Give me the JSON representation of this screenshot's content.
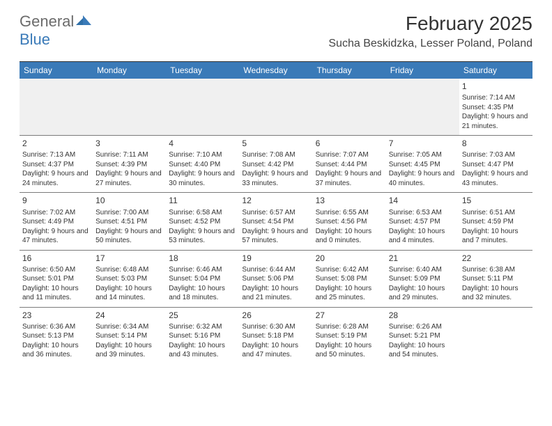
{
  "logo": {
    "general": "General",
    "blue": "Blue"
  },
  "title": "February 2025",
  "location": "Sucha Beskidzka, Lesser Poland, Poland",
  "colors": {
    "header_bar": "#3a7ab8",
    "logo_gray": "#6b6b6b",
    "logo_blue": "#3a7ab8",
    "text": "#333333",
    "divider": "#7a7a7a",
    "alt_bg": "#f0f0f0"
  },
  "daysOfWeek": [
    "Sunday",
    "Monday",
    "Tuesday",
    "Wednesday",
    "Thursday",
    "Friday",
    "Saturday"
  ],
  "month": {
    "year": 2025,
    "month": 2,
    "startDow": 6,
    "numDays": 28
  },
  "labels": {
    "sunrise": "Sunrise: ",
    "sunset": "Sunset: ",
    "daylight": "Daylight: "
  },
  "days": {
    "1": {
      "sunrise": "7:14 AM",
      "sunset": "4:35 PM",
      "daylight": "9 hours and 21 minutes."
    },
    "2": {
      "sunrise": "7:13 AM",
      "sunset": "4:37 PM",
      "daylight": "9 hours and 24 minutes."
    },
    "3": {
      "sunrise": "7:11 AM",
      "sunset": "4:39 PM",
      "daylight": "9 hours and 27 minutes."
    },
    "4": {
      "sunrise": "7:10 AM",
      "sunset": "4:40 PM",
      "daylight": "9 hours and 30 minutes."
    },
    "5": {
      "sunrise": "7:08 AM",
      "sunset": "4:42 PM",
      "daylight": "9 hours and 33 minutes."
    },
    "6": {
      "sunrise": "7:07 AM",
      "sunset": "4:44 PM",
      "daylight": "9 hours and 37 minutes."
    },
    "7": {
      "sunrise": "7:05 AM",
      "sunset": "4:45 PM",
      "daylight": "9 hours and 40 minutes."
    },
    "8": {
      "sunrise": "7:03 AM",
      "sunset": "4:47 PM",
      "daylight": "9 hours and 43 minutes."
    },
    "9": {
      "sunrise": "7:02 AM",
      "sunset": "4:49 PM",
      "daylight": "9 hours and 47 minutes."
    },
    "10": {
      "sunrise": "7:00 AM",
      "sunset": "4:51 PM",
      "daylight": "9 hours and 50 minutes."
    },
    "11": {
      "sunrise": "6:58 AM",
      "sunset": "4:52 PM",
      "daylight": "9 hours and 53 minutes."
    },
    "12": {
      "sunrise": "6:57 AM",
      "sunset": "4:54 PM",
      "daylight": "9 hours and 57 minutes."
    },
    "13": {
      "sunrise": "6:55 AM",
      "sunset": "4:56 PM",
      "daylight": "10 hours and 0 minutes."
    },
    "14": {
      "sunrise": "6:53 AM",
      "sunset": "4:57 PM",
      "daylight": "10 hours and 4 minutes."
    },
    "15": {
      "sunrise": "6:51 AM",
      "sunset": "4:59 PM",
      "daylight": "10 hours and 7 minutes."
    },
    "16": {
      "sunrise": "6:50 AM",
      "sunset": "5:01 PM",
      "daylight": "10 hours and 11 minutes."
    },
    "17": {
      "sunrise": "6:48 AM",
      "sunset": "5:03 PM",
      "daylight": "10 hours and 14 minutes."
    },
    "18": {
      "sunrise": "6:46 AM",
      "sunset": "5:04 PM",
      "daylight": "10 hours and 18 minutes."
    },
    "19": {
      "sunrise": "6:44 AM",
      "sunset": "5:06 PM",
      "daylight": "10 hours and 21 minutes."
    },
    "20": {
      "sunrise": "6:42 AM",
      "sunset": "5:08 PM",
      "daylight": "10 hours and 25 minutes."
    },
    "21": {
      "sunrise": "6:40 AM",
      "sunset": "5:09 PM",
      "daylight": "10 hours and 29 minutes."
    },
    "22": {
      "sunrise": "6:38 AM",
      "sunset": "5:11 PM",
      "daylight": "10 hours and 32 minutes."
    },
    "23": {
      "sunrise": "6:36 AM",
      "sunset": "5:13 PM",
      "daylight": "10 hours and 36 minutes."
    },
    "24": {
      "sunrise": "6:34 AM",
      "sunset": "5:14 PM",
      "daylight": "10 hours and 39 minutes."
    },
    "25": {
      "sunrise": "6:32 AM",
      "sunset": "5:16 PM",
      "daylight": "10 hours and 43 minutes."
    },
    "26": {
      "sunrise": "6:30 AM",
      "sunset": "5:18 PM",
      "daylight": "10 hours and 47 minutes."
    },
    "27": {
      "sunrise": "6:28 AM",
      "sunset": "5:19 PM",
      "daylight": "10 hours and 50 minutes."
    },
    "28": {
      "sunrise": "6:26 AM",
      "sunset": "5:21 PM",
      "daylight": "10 hours and 54 minutes."
    }
  }
}
